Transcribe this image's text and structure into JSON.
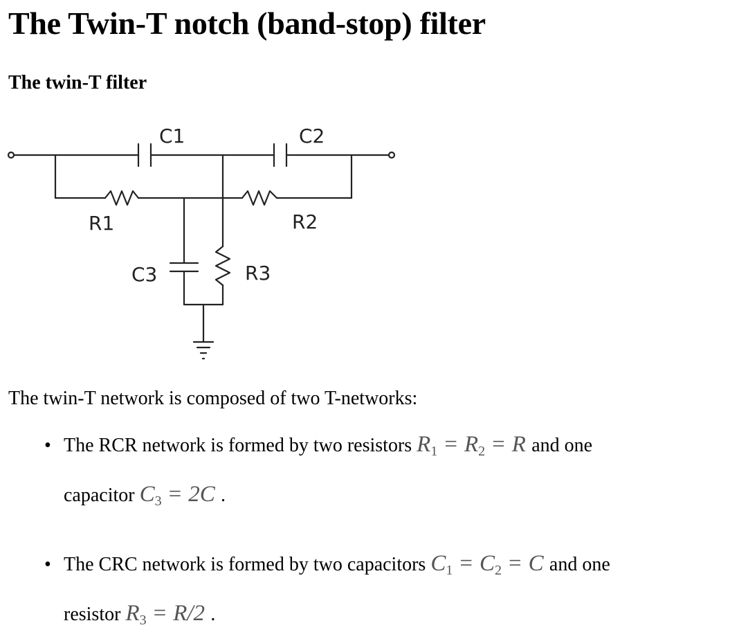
{
  "page": {
    "title": "The Twin-T notch (band-stop) filter",
    "subtitle": "The twin-T filter",
    "intro": "The twin-T network is composed of two T-networks:"
  },
  "circuit": {
    "labels": {
      "c1": "C1",
      "c2": "C2",
      "c3": "C3",
      "r1": "R1",
      "r2": "R2",
      "r3": "R3"
    }
  },
  "bullets": [
    {
      "line1_text": "The RCR network is formed by two resistors",
      "line1_math": {
        "a": "R",
        "a_sub": "1",
        "b": "R",
        "b_sub": "2",
        "c": "R",
        "eq": "="
      },
      "line1_tail": "and one",
      "line2_text": "capacitor",
      "line2_math": {
        "a": "C",
        "a_sub": "3",
        "eq": "=",
        "rhs": "2C"
      },
      "line2_tail": "."
    },
    {
      "line1_text": "The CRC network is formed by two capacitors",
      "line1_math": {
        "a": "C",
        "a_sub": "1",
        "b": "C",
        "b_sub": "2",
        "c": "C",
        "eq": "="
      },
      "line1_tail": "and one",
      "line2_text": "resistor",
      "line2_math": {
        "a": "R",
        "a_sub": "3",
        "eq": "=",
        "rhs": "R/2"
      },
      "line2_tail": "."
    }
  ]
}
